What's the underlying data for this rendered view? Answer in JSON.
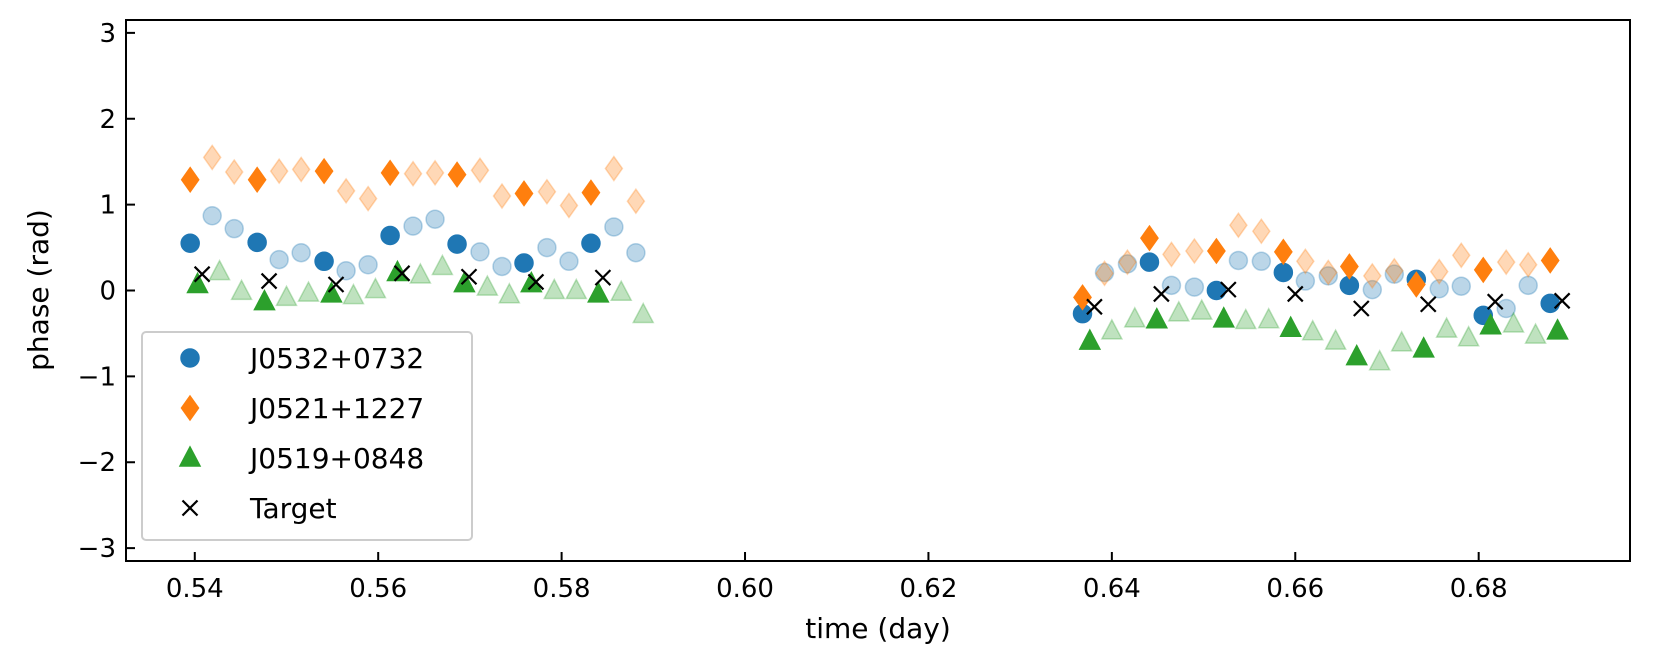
{
  "chart_data": {
    "type": "scatter",
    "title": "",
    "xlabel": "time (day)",
    "ylabel": "phase (rad)",
    "xlim": [
      0.5325,
      0.6965
    ],
    "ylim": [
      -3.15,
      3.15
    ],
    "xticks": [
      0.54,
      0.56,
      0.58,
      0.6,
      0.62,
      0.64,
      0.66,
      0.68
    ],
    "xtick_labels": [
      "0.54",
      "0.56",
      "0.58",
      "0.60",
      "0.62",
      "0.64",
      "0.66",
      "0.68"
    ],
    "yticks": [
      3,
      2,
      1,
      0,
      -1,
      -2,
      -3
    ],
    "ytick_labels": [
      "3",
      "2",
      "1",
      "0",
      "−1",
      "−2",
      "−3"
    ],
    "grid": false,
    "legend_position": "lower-left",
    "series": [
      {
        "name": "J0532+0732",
        "marker": "circle",
        "color": "#1f77b4",
        "solid": [
          {
            "x": 0.5395,
            "y": 0.55
          },
          {
            "x": 0.5468,
            "y": 0.56
          },
          {
            "x": 0.5541,
            "y": 0.34
          },
          {
            "x": 0.5613,
            "y": 0.64
          },
          {
            "x": 0.5686,
            "y": 0.54
          },
          {
            "x": 0.5759,
            "y": 0.32
          },
          {
            "x": 0.5832,
            "y": 0.55
          },
          {
            "x": 0.6368,
            "y": -0.27
          },
          {
            "x": 0.6441,
            "y": 0.33
          },
          {
            "x": 0.6514,
            "y": 0.0
          },
          {
            "x": 0.6587,
            "y": 0.21
          },
          {
            "x": 0.6659,
            "y": 0.06
          },
          {
            "x": 0.6732,
            "y": 0.13
          },
          {
            "x": 0.6805,
            "y": -0.29
          },
          {
            "x": 0.6878,
            "y": -0.15
          }
        ],
        "faded": [
          {
            "x": 0.5419,
            "y": 0.87
          },
          {
            "x": 0.5443,
            "y": 0.72
          },
          {
            "x": 0.5492,
            "y": 0.36
          },
          {
            "x": 0.5516,
            "y": 0.44
          },
          {
            "x": 0.5565,
            "y": 0.23
          },
          {
            "x": 0.5589,
            "y": 0.3
          },
          {
            "x": 0.5638,
            "y": 0.75
          },
          {
            "x": 0.5662,
            "y": 0.83
          },
          {
            "x": 0.5711,
            "y": 0.45
          },
          {
            "x": 0.5735,
            "y": 0.28
          },
          {
            "x": 0.5784,
            "y": 0.5
          },
          {
            "x": 0.5808,
            "y": 0.34
          },
          {
            "x": 0.5857,
            "y": 0.74
          },
          {
            "x": 0.5881,
            "y": 0.44
          },
          {
            "x": 0.6392,
            "y": 0.21
          },
          {
            "x": 0.6417,
            "y": 0.31
          },
          {
            "x": 0.6465,
            "y": 0.06
          },
          {
            "x": 0.649,
            "y": 0.04
          },
          {
            "x": 0.6538,
            "y": 0.35
          },
          {
            "x": 0.6563,
            "y": 0.34
          },
          {
            "x": 0.6611,
            "y": 0.11
          },
          {
            "x": 0.6636,
            "y": 0.17
          },
          {
            "x": 0.6684,
            "y": 0.01
          },
          {
            "x": 0.6708,
            "y": 0.19
          },
          {
            "x": 0.6757,
            "y": 0.02
          },
          {
            "x": 0.6781,
            "y": 0.05
          },
          {
            "x": 0.683,
            "y": -0.21
          },
          {
            "x": 0.6854,
            "y": 0.06
          }
        ]
      },
      {
        "name": "J0521+1227",
        "marker": "diamond",
        "color": "#ff7f0e",
        "solid": [
          {
            "x": 0.5395,
            "y": 1.29
          },
          {
            "x": 0.5468,
            "y": 1.29
          },
          {
            "x": 0.5541,
            "y": 1.39
          },
          {
            "x": 0.5613,
            "y": 1.37
          },
          {
            "x": 0.5686,
            "y": 1.35
          },
          {
            "x": 0.5759,
            "y": 1.13
          },
          {
            "x": 0.5832,
            "y": 1.14
          },
          {
            "x": 0.6368,
            "y": -0.08
          },
          {
            "x": 0.6441,
            "y": 0.61
          },
          {
            "x": 0.6514,
            "y": 0.46
          },
          {
            "x": 0.6587,
            "y": 0.45
          },
          {
            "x": 0.6659,
            "y": 0.28
          },
          {
            "x": 0.6732,
            "y": 0.07
          },
          {
            "x": 0.6805,
            "y": 0.24
          },
          {
            "x": 0.6878,
            "y": 0.35
          }
        ],
        "faded": [
          {
            "x": 0.5419,
            "y": 1.55
          },
          {
            "x": 0.5443,
            "y": 1.38
          },
          {
            "x": 0.5492,
            "y": 1.39
          },
          {
            "x": 0.5516,
            "y": 1.41
          },
          {
            "x": 0.5565,
            "y": 1.16
          },
          {
            "x": 0.5589,
            "y": 1.07
          },
          {
            "x": 0.5638,
            "y": 1.36
          },
          {
            "x": 0.5662,
            "y": 1.37
          },
          {
            "x": 0.5711,
            "y": 1.4
          },
          {
            "x": 0.5735,
            "y": 1.1
          },
          {
            "x": 0.5784,
            "y": 1.15
          },
          {
            "x": 0.5808,
            "y": 0.99
          },
          {
            "x": 0.5857,
            "y": 1.42
          },
          {
            "x": 0.5881,
            "y": 1.04
          },
          {
            "x": 0.6392,
            "y": 0.2
          },
          {
            "x": 0.6417,
            "y": 0.33
          },
          {
            "x": 0.6465,
            "y": 0.42
          },
          {
            "x": 0.649,
            "y": 0.46
          },
          {
            "x": 0.6538,
            "y": 0.76
          },
          {
            "x": 0.6563,
            "y": 0.69
          },
          {
            "x": 0.6611,
            "y": 0.34
          },
          {
            "x": 0.6636,
            "y": 0.21
          },
          {
            "x": 0.6684,
            "y": 0.17
          },
          {
            "x": 0.6708,
            "y": 0.23
          },
          {
            "x": 0.6757,
            "y": 0.22
          },
          {
            "x": 0.6781,
            "y": 0.41
          },
          {
            "x": 0.683,
            "y": 0.33
          },
          {
            "x": 0.6854,
            "y": 0.3
          }
        ]
      },
      {
        "name": "J0519+0848",
        "marker": "triangle",
        "color": "#2ca02c",
        "solid": [
          {
            "x": 0.5403,
            "y": 0.07
          },
          {
            "x": 0.5476,
            "y": -0.13
          },
          {
            "x": 0.5549,
            "y": -0.04
          },
          {
            "x": 0.5621,
            "y": 0.21
          },
          {
            "x": 0.5694,
            "y": 0.08
          },
          {
            "x": 0.5767,
            "y": 0.08
          },
          {
            "x": 0.584,
            "y": -0.04
          },
          {
            "x": 0.6376,
            "y": -0.59
          },
          {
            "x": 0.6449,
            "y": -0.34
          },
          {
            "x": 0.6522,
            "y": -0.33
          },
          {
            "x": 0.6595,
            "y": -0.44
          },
          {
            "x": 0.6667,
            "y": -0.77
          },
          {
            "x": 0.674,
            "y": -0.68
          },
          {
            "x": 0.6813,
            "y": -0.41
          },
          {
            "x": 0.6886,
            "y": -0.47
          }
        ],
        "faded": [
          {
            "x": 0.5427,
            "y": 0.22
          },
          {
            "x": 0.5451,
            "y": -0.01
          },
          {
            "x": 0.55,
            "y": -0.08
          },
          {
            "x": 0.5524,
            "y": -0.03
          },
          {
            "x": 0.5573,
            "y": -0.06
          },
          {
            "x": 0.5597,
            "y": 0.01
          },
          {
            "x": 0.5646,
            "y": 0.18
          },
          {
            "x": 0.567,
            "y": 0.28
          },
          {
            "x": 0.5719,
            "y": 0.04
          },
          {
            "x": 0.5743,
            "y": -0.05
          },
          {
            "x": 0.5792,
            "y": 0.0
          },
          {
            "x": 0.5816,
            "y": 0.0
          },
          {
            "x": 0.5865,
            "y": -0.02
          },
          {
            "x": 0.5889,
            "y": -0.28
          },
          {
            "x": 0.64,
            "y": -0.47
          },
          {
            "x": 0.6425,
            "y": -0.33
          },
          {
            "x": 0.6473,
            "y": -0.26
          },
          {
            "x": 0.6498,
            "y": -0.24
          },
          {
            "x": 0.6546,
            "y": -0.35
          },
          {
            "x": 0.6571,
            "y": -0.34
          },
          {
            "x": 0.6619,
            "y": -0.48
          },
          {
            "x": 0.6644,
            "y": -0.59
          },
          {
            "x": 0.6692,
            "y": -0.83
          },
          {
            "x": 0.6716,
            "y": -0.61
          },
          {
            "x": 0.6765,
            "y": -0.45
          },
          {
            "x": 0.6789,
            "y": -0.55
          },
          {
            "x": 0.6838,
            "y": -0.39
          },
          {
            "x": 0.6862,
            "y": -0.52
          }
        ]
      },
      {
        "name": "Target",
        "marker": "x",
        "color": "#000000",
        "solid": [
          {
            "x": 0.5408,
            "y": 0.19
          },
          {
            "x": 0.5481,
            "y": 0.11
          },
          {
            "x": 0.5554,
            "y": 0.07
          },
          {
            "x": 0.5626,
            "y": 0.2
          },
          {
            "x": 0.5699,
            "y": 0.16
          },
          {
            "x": 0.5772,
            "y": 0.1
          },
          {
            "x": 0.5845,
            "y": 0.15
          },
          {
            "x": 0.6381,
            "y": -0.19
          },
          {
            "x": 0.6454,
            "y": -0.04
          },
          {
            "x": 0.6527,
            "y": 0.01
          },
          {
            "x": 0.66,
            "y": -0.04
          },
          {
            "x": 0.6672,
            "y": -0.21
          },
          {
            "x": 0.6745,
            "y": -0.16
          },
          {
            "x": 0.6818,
            "y": -0.13
          },
          {
            "x": 0.6891,
            "y": -0.12
          }
        ],
        "faded": []
      }
    ]
  }
}
